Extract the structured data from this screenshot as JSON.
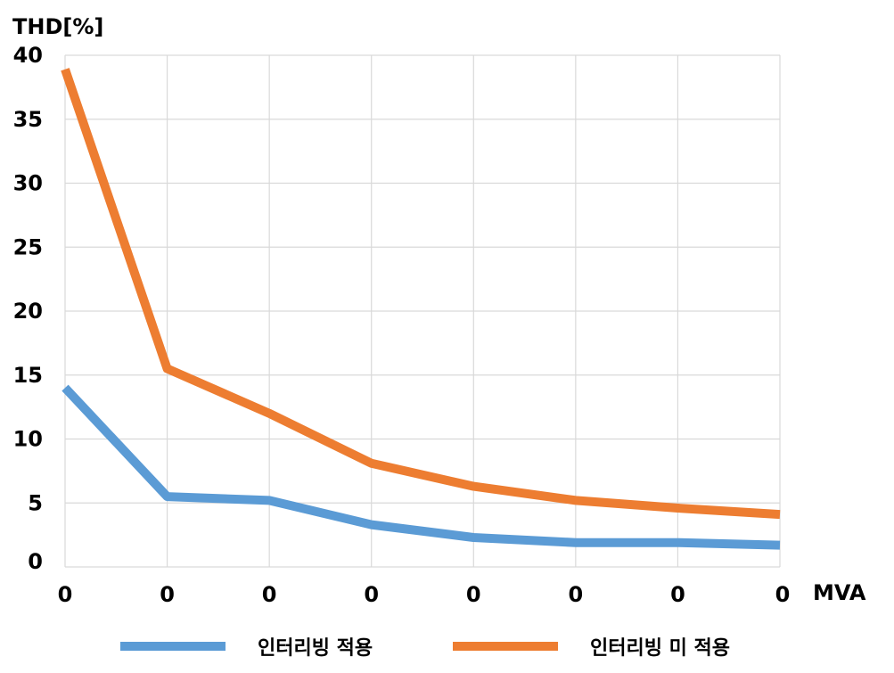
{
  "chart_data": {
    "type": "line",
    "ylabel": "THD[%]",
    "xlabel": "MVA",
    "ylim": [
      0,
      40
    ],
    "yticks": [
      0,
      5,
      10,
      15,
      20,
      25,
      30,
      35,
      40
    ],
    "categories": [
      "0",
      "0",
      "0",
      "0",
      "0",
      "0",
      "0",
      "0"
    ],
    "grid": true,
    "legend_position": "bottom",
    "series": [
      {
        "name": "인터리빙 적용",
        "color": "#5B9BD5",
        "values": [
          14.0,
          5.5,
          5.2,
          3.3,
          2.3,
          1.9,
          1.9,
          1.7
        ]
      },
      {
        "name": "인터리빙 미 적용",
        "color": "#ED7D31",
        "values": [
          38.9,
          15.5,
          12.0,
          8.1,
          6.3,
          5.2,
          4.6,
          4.1
        ]
      }
    ]
  }
}
